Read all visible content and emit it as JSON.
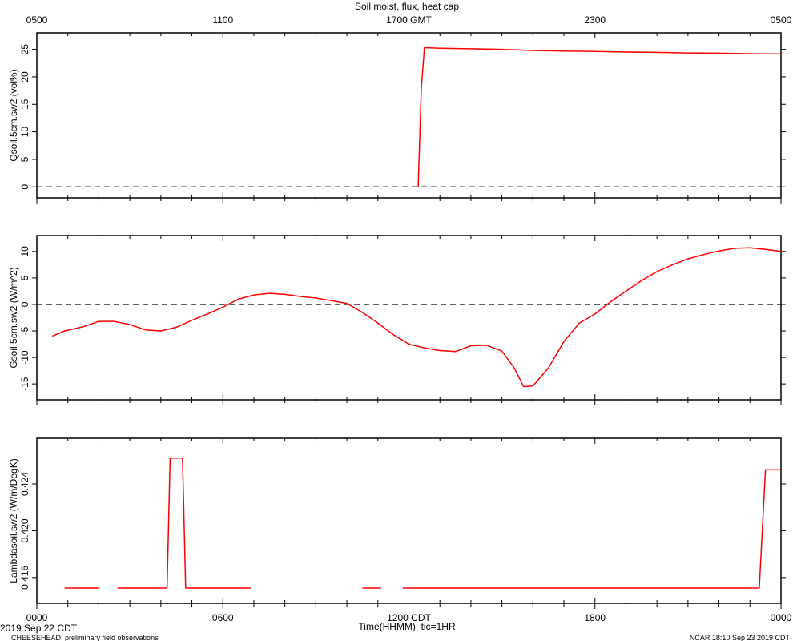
{
  "figure": {
    "title": "Soil moist, flux, heat cap",
    "top_axis_ticks": [
      "0500",
      "1100",
      "1700 GMT",
      "2300",
      "0500"
    ],
    "bottom_axis_ticks": [
      "0000",
      "0600",
      "1200 CDT",
      "1800",
      "0000"
    ],
    "xlabel": "Time(HHMM), tic=1HR",
    "start_date": "2019 Sep 22 CDT",
    "footer_left": "CHEESEHEAD: preliminary field observations",
    "footer_right": "NCAR 18:10 Sep 23 2019 CDT",
    "data_color": "#ff0000"
  },
  "chart_data": [
    {
      "type": "line",
      "ylabel": "Qsoil.5cm.sw2 (vol%)",
      "ylim": [
        -2,
        28
      ],
      "yticks": [
        0,
        5,
        10,
        15,
        20,
        25
      ],
      "reference_line": 0,
      "x_units": "hours since 0000 CDT",
      "xlim": [
        0,
        24
      ],
      "series": [
        {
          "segments": [
            [
              [
                12.3,
                0
              ],
              [
                12.4,
                18
              ],
              [
                12.5,
                25.3
              ],
              [
                13,
                25.2
              ],
              [
                14,
                25.1
              ],
              [
                15,
                25.0
              ],
              [
                16,
                24.8
              ],
              [
                17,
                24.7
              ],
              [
                18,
                24.6
              ],
              [
                19,
                24.5
              ],
              [
                20,
                24.45
              ],
              [
                21,
                24.35
              ],
              [
                22,
                24.3
              ],
              [
                23,
                24.2
              ],
              [
                24,
                24.15
              ]
            ]
          ]
        }
      ]
    },
    {
      "type": "line",
      "ylabel": "Gsoil.5cm.sw2 (W/m^2)",
      "ylim": [
        -18,
        13
      ],
      "yticks": [
        10,
        5,
        0,
        -5,
        -10,
        -15
      ],
      "reference_line": 0,
      "x_units": "hours since 0000 CDT",
      "xlim": [
        0,
        24
      ],
      "series": [
        {
          "segments": [
            [
              [
                0.5,
                -6
              ],
              [
                0.9,
                -5
              ],
              [
                1.5,
                -4.2
              ],
              [
                2,
                -3.2
              ],
              [
                2.5,
                -3.2
              ],
              [
                3,
                -3.8
              ],
              [
                3.5,
                -4.8
              ],
              [
                4,
                -5
              ],
              [
                4.5,
                -4.3
              ],
              [
                5,
                -3
              ],
              [
                5.5,
                -1.8
              ],
              [
                6,
                -0.5
              ],
              [
                6.5,
                1
              ],
              [
                7,
                1.8
              ],
              [
                7.5,
                2.1
              ],
              [
                8,
                1.9
              ],
              [
                8.5,
                1.5
              ],
              [
                9,
                1.2
              ],
              [
                9.5,
                0.7
              ],
              [
                10,
                0.2
              ],
              [
                10.5,
                -1.5
              ],
              [
                11,
                -3.5
              ],
              [
                11.5,
                -5.7
              ],
              [
                12,
                -7.5
              ],
              [
                12.5,
                -8.2
              ],
              [
                13,
                -8.7
              ],
              [
                13.5,
                -8.9
              ],
              [
                14,
                -7.8
              ],
              [
                14.5,
                -7.7
              ],
              [
                15,
                -8.8
              ],
              [
                15.4,
                -12
              ],
              [
                15.7,
                -15.5
              ],
              [
                16,
                -15.4
              ],
              [
                16.5,
                -12
              ],
              [
                17,
                -7
              ],
              [
                17.5,
                -3.5
              ],
              [
                18,
                -1.8
              ],
              [
                18.5,
                0.5
              ],
              [
                19,
                2.5
              ],
              [
                19.5,
                4.5
              ],
              [
                20,
                6.2
              ],
              [
                20.5,
                7.5
              ],
              [
                21,
                8.6
              ],
              [
                21.5,
                9.4
              ],
              [
                22,
                10.1
              ],
              [
                22.5,
                10.6
              ],
              [
                23,
                10.7
              ],
              [
                23.5,
                10.4
              ],
              [
                24,
                10
              ]
            ]
          ]
        }
      ]
    },
    {
      "type": "line",
      "ylabel": "Lambdasoil.sw2 (W/m/DegK)",
      "ylim": [
        0.4138,
        0.4279
      ],
      "yticks": [
        0.416,
        0.42,
        0.424
      ],
      "x_units": "hours since 0000 CDT",
      "xlim": [
        0,
        24
      ],
      "series": [
        {
          "segments": [
            [
              [
                0.9,
                0.4151
              ],
              [
                2,
                0.4151
              ]
            ],
            [
              [
                2.6,
                0.4151
              ],
              [
                4.2,
                0.4151
              ],
              [
                4.3,
                0.4262
              ],
              [
                4.7,
                0.4262
              ],
              [
                4.8,
                0.4151
              ],
              [
                6.9,
                0.4151
              ]
            ],
            [
              [
                10.5,
                0.4151
              ],
              [
                11.1,
                0.4151
              ]
            ],
            [
              [
                11.8,
                0.4151
              ],
              [
                23.3,
                0.4151
              ],
              [
                23.5,
                0.4252
              ],
              [
                24,
                0.4252
              ]
            ]
          ]
        }
      ]
    }
  ]
}
